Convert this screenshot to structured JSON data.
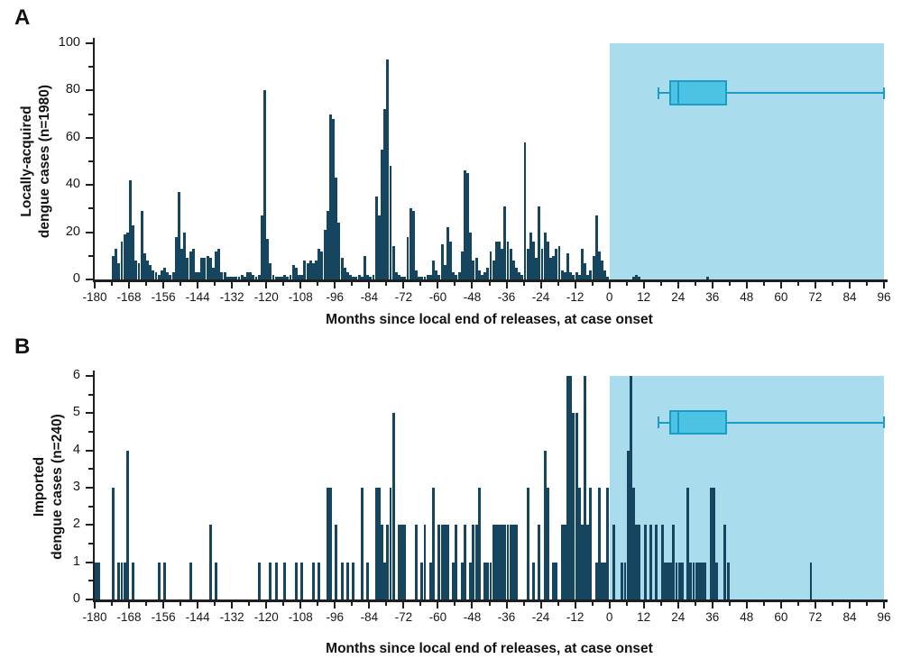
{
  "colors": {
    "bar": "#16465f",
    "shaded_region": "#a9dcec",
    "box_fill": "#4cc3e2",
    "box_stroke": "#1a9dc9",
    "axis": "#1e1e1e"
  },
  "chart_data": [
    {
      "type": "bar",
      "panel_label": "A",
      "ylabel_line1": "Locally-acquired",
      "ylabel_line2": "dengue cases (n=1980)",
      "xlabel": "Months since local end of releases, at case onset",
      "xlim": [
        -180,
        96
      ],
      "ylim": [
        0,
        100
      ],
      "x_tick_step": 12,
      "x_minor_step": 6,
      "x_tick_labels": [
        "-180",
        "-168",
        "-156",
        "-144",
        "-132",
        "-120",
        "-108",
        "-96",
        "-84",
        "-72",
        "-60",
        "-48",
        "-36",
        "-24",
        "-12",
        "0",
        "12",
        "24",
        "36",
        "48",
        "60",
        "72",
        "84",
        "96"
      ],
      "y_tick_labels": [
        "0",
        "20",
        "40",
        "60",
        "80",
        "100"
      ],
      "y_major_step": 20,
      "y_minor_step": 10,
      "shaded_region": {
        "from": 0,
        "to": 96
      },
      "boxplot": {
        "whisker_min": 17,
        "q1": 21,
        "median": 24,
        "q3": 41,
        "whisker_max": 96,
        "center_value": 79,
        "box_top_value": 84.5,
        "box_bottom_value": 73.5
      },
      "bars": [
        [
          -174,
          10
        ],
        [
          -173,
          13
        ],
        [
          -172,
          7
        ],
        [
          -171,
          16
        ],
        [
          -170,
          19
        ],
        [
          -169,
          20
        ],
        [
          -168,
          42
        ],
        [
          -167,
          23
        ],
        [
          -166,
          8
        ],
        [
          -165,
          7
        ],
        [
          -164,
          29
        ],
        [
          -163,
          11
        ],
        [
          -162,
          8
        ],
        [
          -161,
          6
        ],
        [
          -160,
          4
        ],
        [
          -159,
          3
        ],
        [
          -158,
          2
        ],
        [
          -157,
          4
        ],
        [
          -156,
          5
        ],
        [
          -155,
          3
        ],
        [
          -154,
          2
        ],
        [
          -153,
          3
        ],
        [
          -152,
          18
        ],
        [
          -151,
          37
        ],
        [
          -150,
          13
        ],
        [
          -149,
          20
        ],
        [
          -148,
          9
        ],
        [
          -147,
          12
        ],
        [
          -146,
          13
        ],
        [
          -145,
          3
        ],
        [
          -144,
          3
        ],
        [
          -143,
          9
        ],
        [
          -142,
          9
        ],
        [
          -141,
          10
        ],
        [
          -140,
          9
        ],
        [
          -139,
          5
        ],
        [
          -138,
          12
        ],
        [
          -137,
          13
        ],
        [
          -136,
          3
        ],
        [
          -135,
          3
        ],
        [
          -134,
          1
        ],
        [
          -133,
          1
        ],
        [
          -132,
          1
        ],
        [
          -131,
          1
        ],
        [
          -130,
          1
        ],
        [
          -129,
          2
        ],
        [
          -128,
          1
        ],
        [
          -127,
          3
        ],
        [
          -126,
          3
        ],
        [
          -125,
          2
        ],
        [
          -124,
          1
        ],
        [
          -123,
          2
        ],
        [
          -122,
          27
        ],
        [
          -121,
          80
        ],
        [
          -120,
          17
        ],
        [
          -119,
          7
        ],
        [
          -118,
          2
        ],
        [
          -117,
          1
        ],
        [
          -116,
          1
        ],
        [
          -115,
          1
        ],
        [
          -114,
          2
        ],
        [
          -113,
          1
        ],
        [
          -112,
          2
        ],
        [
          -111,
          6
        ],
        [
          -110,
          5
        ],
        [
          -109,
          2
        ],
        [
          -108,
          2
        ],
        [
          -107,
          8
        ],
        [
          -106,
          7
        ],
        [
          -105,
          8
        ],
        [
          -104,
          7
        ],
        [
          -103,
          8
        ],
        [
          -102,
          13
        ],
        [
          -101,
          12
        ],
        [
          -100,
          21
        ],
        [
          -99,
          29
        ],
        [
          -98,
          70
        ],
        [
          -97,
          68
        ],
        [
          -96,
          43
        ],
        [
          -95,
          24
        ],
        [
          -94,
          9
        ],
        [
          -93,
          5
        ],
        [
          -92,
          3
        ],
        [
          -91,
          2
        ],
        [
          -90,
          1
        ],
        [
          -89,
          1
        ],
        [
          -88,
          2
        ],
        [
          -87,
          1
        ],
        [
          -86,
          10
        ],
        [
          -85,
          2
        ],
        [
          -84,
          1
        ],
        [
          -83,
          2
        ],
        [
          -82,
          35
        ],
        [
          -81,
          27
        ],
        [
          -80,
          55
        ],
        [
          -79,
          72
        ],
        [
          -78,
          93
        ],
        [
          -77,
          48
        ],
        [
          -76,
          14
        ],
        [
          -75,
          3
        ],
        [
          -74,
          2
        ],
        [
          -73,
          1
        ],
        [
          -72,
          1
        ],
        [
          -71,
          18
        ],
        [
          -70,
          30
        ],
        [
          -69,
          29
        ],
        [
          -68,
          4
        ],
        [
          -67,
          1
        ],
        [
          -66,
          1
        ],
        [
          -65,
          1
        ],
        [
          -64,
          2
        ],
        [
          -63,
          2
        ],
        [
          -62,
          8
        ],
        [
          -61,
          4
        ],
        [
          -60,
          2
        ],
        [
          -59,
          15
        ],
        [
          -58,
          6
        ],
        [
          -57,
          22
        ],
        [
          -56,
          16
        ],
        [
          -55,
          3
        ],
        [
          -54,
          2
        ],
        [
          -53,
          3
        ],
        [
          -52,
          12
        ],
        [
          -51,
          46
        ],
        [
          -50,
          45
        ],
        [
          -49,
          20
        ],
        [
          -48,
          8
        ],
        [
          -47,
          9
        ],
        [
          -46,
          4
        ],
        [
          -45,
          2
        ],
        [
          -44,
          3
        ],
        [
          -43,
          5
        ],
        [
          -42,
          12
        ],
        [
          -41,
          8
        ],
        [
          -40,
          16
        ],
        [
          -39,
          16
        ],
        [
          -38,
          13
        ],
        [
          -37,
          31
        ],
        [
          -36,
          16
        ],
        [
          -35,
          13
        ],
        [
          -34,
          8
        ],
        [
          -33,
          5
        ],
        [
          -32,
          3
        ],
        [
          -31,
          2
        ],
        [
          -30,
          58
        ],
        [
          -29,
          13
        ],
        [
          -28,
          20
        ],
        [
          -27,
          16
        ],
        [
          -26,
          9
        ],
        [
          -25,
          31
        ],
        [
          -24,
          13
        ],
        [
          -23,
          20
        ],
        [
          -22,
          16
        ],
        [
          -21,
          9
        ],
        [
          -20,
          10
        ],
        [
          -19,
          13
        ],
        [
          -18,
          14
        ],
        [
          -17,
          4
        ],
        [
          -16,
          3
        ],
        [
          -15,
          11
        ],
        [
          -14,
          3
        ],
        [
          -13,
          2
        ],
        [
          -12,
          3
        ],
        [
          -11,
          2
        ],
        [
          -10,
          13
        ],
        [
          -9,
          7
        ],
        [
          -8,
          2
        ],
        [
          -7,
          4
        ],
        [
          -6,
          10
        ],
        [
          -5,
          27
        ],
        [
          -4,
          12
        ],
        [
          -3,
          8
        ],
        [
          -2,
          4
        ],
        [
          -1,
          1
        ],
        [
          8,
          1
        ],
        [
          9,
          2
        ],
        [
          10,
          1
        ],
        [
          34,
          1
        ]
      ]
    },
    {
      "type": "bar",
      "panel_label": "B",
      "ylabel_line1": "Imported",
      "ylabel_line2": "dengue cases (n=240)",
      "xlabel": "Months since local end of releases, at case onset",
      "xlim": [
        -180,
        96
      ],
      "ylim": [
        0,
        6
      ],
      "x_tick_step": 12,
      "x_minor_step": 6,
      "x_tick_labels": [
        "-180",
        "-168",
        "-156",
        "-144",
        "-132",
        "-120",
        "-108",
        "-96",
        "-84",
        "-72",
        "-60",
        "-48",
        "-36",
        "-24",
        "-12",
        "0",
        "12",
        "24",
        "36",
        "48",
        "60",
        "72",
        "84",
        "96"
      ],
      "y_tick_labels": [
        "0",
        "1",
        "2",
        "3",
        "4",
        "5",
        "6"
      ],
      "y_major_step": 1,
      "y_minor_step": 0.5,
      "shaded_region": {
        "from": 0,
        "to": 96
      },
      "boxplot": {
        "whisker_min": 17,
        "q1": 21,
        "median": 24,
        "q3": 41,
        "whisker_max": 96,
        "center_value": 4.75,
        "box_top_value": 5.08,
        "box_bottom_value": 4.42
      },
      "bars": [
        [
          -180,
          1
        ],
        [
          -179,
          1
        ],
        [
          -174,
          3
        ],
        [
          -172,
          1
        ],
        [
          -171,
          1
        ],
        [
          -170,
          1
        ],
        [
          -169,
          4
        ],
        [
          -167,
          1
        ],
        [
          -158,
          1
        ],
        [
          -156,
          1
        ],
        [
          -147,
          1
        ],
        [
          -140,
          2
        ],
        [
          -138,
          1
        ],
        [
          -123,
          1
        ],
        [
          -119,
          1
        ],
        [
          -117,
          1
        ],
        [
          -114,
          1
        ],
        [
          -110,
          1
        ],
        [
          -108,
          1
        ],
        [
          -104,
          1
        ],
        [
          -102,
          1
        ],
        [
          -99,
          3
        ],
        [
          -98,
          3
        ],
        [
          -96,
          2
        ],
        [
          -94,
          1
        ],
        [
          -92,
          1
        ],
        [
          -90,
          1
        ],
        [
          -87,
          3
        ],
        [
          -85,
          1
        ],
        [
          -82,
          3
        ],
        [
          -81,
          3
        ],
        [
          -80,
          2
        ],
        [
          -79,
          1
        ],
        [
          -78,
          2
        ],
        [
          -77,
          3
        ],
        [
          -76,
          5
        ],
        [
          -74,
          2
        ],
        [
          -73,
          2
        ],
        [
          -72,
          2
        ],
        [
          -68,
          2
        ],
        [
          -66,
          1
        ],
        [
          -65,
          2
        ],
        [
          -63,
          1
        ],
        [
          -62,
          3
        ],
        [
          -60,
          2
        ],
        [
          -59,
          2
        ],
        [
          -58,
          2
        ],
        [
          -57,
          2
        ],
        [
          -55,
          1
        ],
        [
          -54,
          2
        ],
        [
          -52,
          1
        ],
        [
          -51,
          2
        ],
        [
          -49,
          1
        ],
        [
          -48,
          2
        ],
        [
          -47,
          2
        ],
        [
          -46,
          3
        ],
        [
          -44,
          1
        ],
        [
          -43,
          1
        ],
        [
          -42,
          1
        ],
        [
          -41,
          2
        ],
        [
          -40,
          2
        ],
        [
          -39,
          2
        ],
        [
          -38,
          2
        ],
        [
          -37,
          2
        ],
        [
          -36,
          2
        ],
        [
          -35,
          2
        ],
        [
          -34,
          2
        ],
        [
          -33,
          2
        ],
        [
          -29,
          3
        ],
        [
          -27,
          1
        ],
        [
          -25,
          2
        ],
        [
          -23,
          4
        ],
        [
          -22,
          3
        ],
        [
          -20,
          1
        ],
        [
          -19,
          1
        ],
        [
          -17,
          2
        ],
        [
          -16,
          2
        ],
        [
          -15,
          6
        ],
        [
          -14,
          6
        ],
        [
          -13,
          5
        ],
        [
          -12,
          5
        ],
        [
          -11,
          3
        ],
        [
          -10,
          2
        ],
        [
          -9,
          6
        ],
        [
          -8,
          2
        ],
        [
          -7,
          3
        ],
        [
          -5,
          1
        ],
        [
          -4,
          3
        ],
        [
          -3,
          1
        ],
        [
          -2,
          1
        ],
        [
          -1,
          3
        ],
        [
          1,
          2
        ],
        [
          4,
          1
        ],
        [
          5,
          1
        ],
        [
          6,
          4
        ],
        [
          7,
          6
        ],
        [
          8,
          3
        ],
        [
          9,
          2
        ],
        [
          10,
          2
        ],
        [
          12,
          2
        ],
        [
          14,
          2
        ],
        [
          16,
          2
        ],
        [
          18,
          2
        ],
        [
          19,
          1
        ],
        [
          20,
          1
        ],
        [
          21,
          1
        ],
        [
          22,
          2
        ],
        [
          23,
          1
        ],
        [
          24,
          1
        ],
        [
          25,
          1
        ],
        [
          27,
          3
        ],
        [
          28,
          1
        ],
        [
          29,
          1
        ],
        [
          30,
          1
        ],
        [
          31,
          1
        ],
        [
          32,
          1
        ],
        [
          33,
          1
        ],
        [
          35,
          3
        ],
        [
          36,
          3
        ],
        [
          37,
          1
        ],
        [
          40,
          2
        ],
        [
          41,
          1
        ],
        [
          70,
          1
        ]
      ]
    }
  ]
}
